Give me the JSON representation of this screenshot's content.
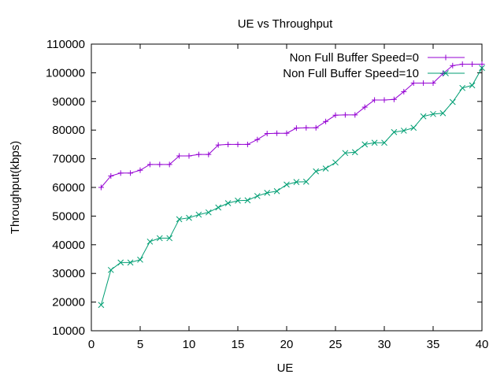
{
  "chart_data": {
    "type": "line",
    "title": "UE vs Throughput",
    "xlabel": "UE",
    "ylabel": "Throughput(kbps)",
    "xlim": [
      0,
      40
    ],
    "ylim": [
      10000,
      110000
    ],
    "xticks": [
      0,
      5,
      10,
      15,
      20,
      25,
      30,
      35,
      40
    ],
    "yticks": [
      10000,
      20000,
      30000,
      40000,
      50000,
      60000,
      70000,
      80000,
      90000,
      100000,
      110000
    ],
    "grid": false,
    "legend_position": "top-right",
    "x": [
      1,
      2,
      3,
      4,
      5,
      6,
      7,
      8,
      9,
      10,
      11,
      12,
      13,
      14,
      15,
      16,
      17,
      18,
      19,
      20,
      21,
      22,
      23,
      24,
      25,
      26,
      27,
      28,
      29,
      30,
      31,
      32,
      33,
      34,
      35,
      36,
      37,
      38,
      39,
      40
    ],
    "series": [
      {
        "name": "Non Full Buffer Speed=0",
        "color": "#9400d3",
        "marker": "plus",
        "values": [
          60000,
          64000,
          65000,
          65000,
          66000,
          68000,
          68000,
          68000,
          71000,
          71000,
          71500,
          71500,
          74800,
          75000,
          75000,
          75000,
          76700,
          78800,
          78900,
          78900,
          80700,
          80800,
          80800,
          83000,
          85200,
          85300,
          85300,
          88000,
          90500,
          90500,
          90700,
          93400,
          96400,
          96400,
          96400,
          99700,
          102500,
          103000,
          103000,
          103000
        ]
      },
      {
        "name": "Non Full Buffer Speed=10",
        "color": "#009e73",
        "marker": "cross",
        "values": [
          19000,
          31200,
          33800,
          33800,
          34800,
          41100,
          42300,
          42300,
          48900,
          49400,
          50500,
          51300,
          53000,
          54500,
          55400,
          55500,
          57000,
          58100,
          58700,
          61000,
          61900,
          62000,
          65600,
          66600,
          68700,
          72000,
          72300,
          75000,
          75600,
          75600,
          79300,
          79800,
          80800,
          84800,
          85600,
          85900,
          89800,
          94700,
          95600,
          101700
        ]
      }
    ]
  }
}
